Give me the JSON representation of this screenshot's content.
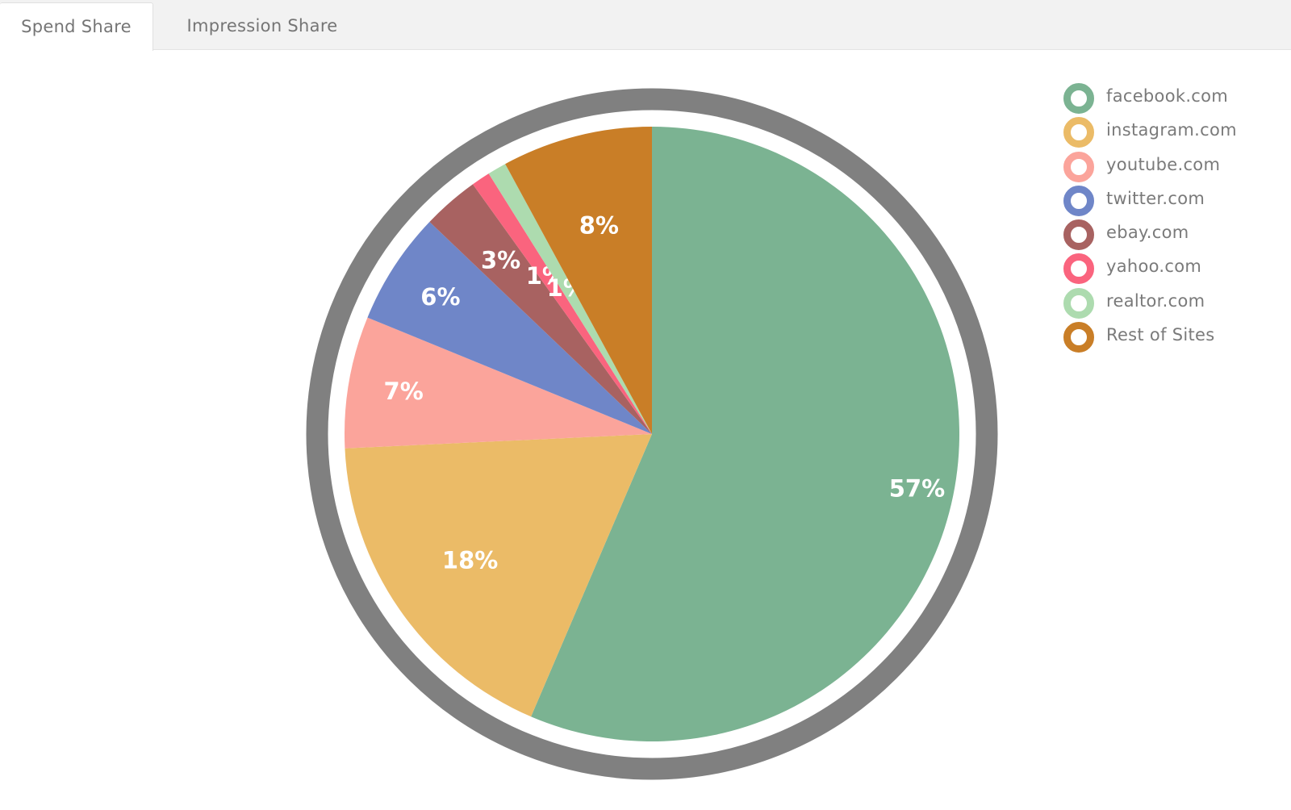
{
  "tabs": [
    {
      "label": "Spend Share",
      "active": true
    },
    {
      "label": "Impression Share",
      "active": false
    }
  ],
  "chart_data": {
    "type": "pie",
    "series_label": "",
    "slices": [
      {
        "name": "facebook.com",
        "value": 57,
        "label": "57%",
        "color": "#7bb392"
      },
      {
        "name": "instagram.com",
        "value": 18,
        "label": "18%",
        "color": "#ebbb67"
      },
      {
        "name": "youtube.com",
        "value": 7,
        "label": "7%",
        "color": "#fba49b"
      },
      {
        "name": "twitter.com",
        "value": 6,
        "label": "6%",
        "color": "#6f86c8"
      },
      {
        "name": "ebay.com",
        "value": 3,
        "label": "3%",
        "color": "#a86261"
      },
      {
        "name": "yahoo.com",
        "value": 1,
        "label": "1%",
        "color": "#fa647e"
      },
      {
        "name": "realtor.com",
        "value": 1,
        "label": "1%",
        "color": "#addbaf"
      },
      {
        "name": "Rest of Sites",
        "value": 8,
        "label": "8%",
        "color": "#c97e27"
      }
    ],
    "ring_color": "#808080",
    "legend_position": "top-right"
  }
}
